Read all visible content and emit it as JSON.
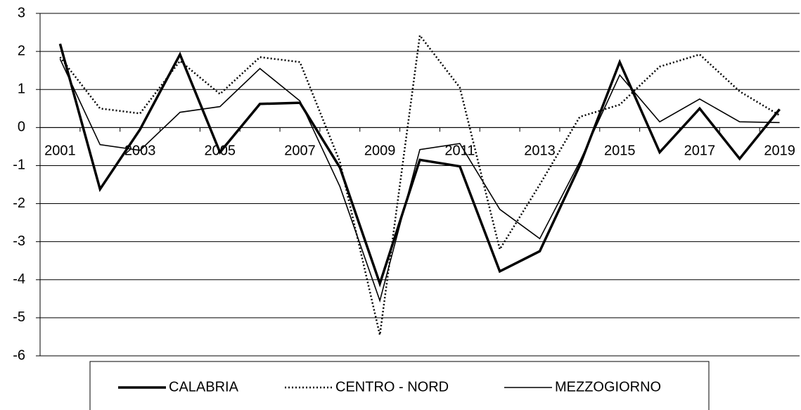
{
  "chart_data": {
    "type": "line",
    "categories": [
      "2001",
      null,
      "2003",
      null,
      "2005",
      null,
      "2007",
      null,
      "2009",
      null,
      "2011",
      null,
      "2013",
      null,
      "2015",
      null,
      "2017",
      null,
      "2019"
    ],
    "series": [
      {
        "name": "CALABRIA",
        "color": "#000000",
        "line_style": "solid",
        "line_width": 3.5,
        "values": [
          2.2,
          -1.62,
          -0.05,
          1.92,
          -0.65,
          0.62,
          0.65,
          -1.05,
          -4.1,
          -0.85,
          -1.02,
          -3.78,
          -3.25,
          -1.0,
          1.72,
          -0.65,
          0.5,
          -0.82,
          0.48
        ]
      },
      {
        "name": "CENTRO - NORD",
        "color": "#000000",
        "line_style": "dotted",
        "line_width": 2.5,
        "values": [
          1.85,
          0.5,
          0.37,
          1.75,
          0.88,
          1.85,
          1.72,
          -0.9,
          -5.45,
          2.42,
          1.05,
          -3.2,
          -1.5,
          0.28,
          0.6,
          1.6,
          1.92,
          0.95,
          0.32
        ]
      },
      {
        "name": "MEZZOGIORNO",
        "color": "#000000",
        "line_style": "solid",
        "line_width": 1.6,
        "values": [
          1.8,
          -0.45,
          -0.6,
          0.4,
          0.55,
          1.55,
          0.7,
          -1.55,
          -4.55,
          -0.58,
          -0.42,
          -2.15,
          -2.92,
          -0.9,
          1.38,
          0.15,
          0.75,
          0.15,
          0.13
        ]
      }
    ],
    "ylim": [
      -6,
      3
    ],
    "yticks": [
      3,
      2,
      1,
      0,
      -1,
      -2,
      -3,
      -4,
      -5,
      -6
    ],
    "grid": true,
    "legend": "bottom"
  }
}
